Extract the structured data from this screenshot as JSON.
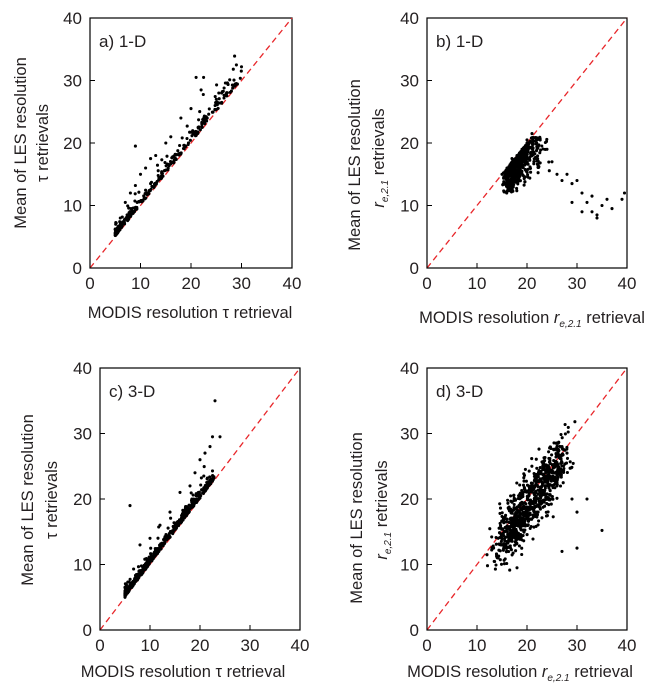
{
  "chart_data": [
    {
      "type": "scatter",
      "panel_label": "a) 1-D",
      "xlabel": "MODIS resolution τ retrieval",
      "ylabel": [
        "Mean of LES resolution",
        "τ retrievals"
      ],
      "xlim": [
        0,
        40
      ],
      "ylim": [
        0,
        40
      ],
      "xticks": [
        "0",
        "10",
        "20",
        "30",
        "40"
      ],
      "yticks": [
        "0",
        "10",
        "20",
        "30",
        "40"
      ],
      "reference_line": "1:1 dashed red",
      "cluster": {
        "x_range": [
          5,
          30
        ],
        "mode": "above_diagonal",
        "spread": 0.55,
        "count": 330
      },
      "points": [
        [
          5,
          5.2
        ],
        [
          6,
          8
        ],
        [
          7,
          10.5
        ],
        [
          8,
          12
        ],
        [
          9,
          13.2
        ],
        [
          10,
          15
        ],
        [
          11,
          16
        ],
        [
          12,
          17.5
        ],
        [
          13,
          18
        ],
        [
          15,
          20
        ],
        [
          16,
          21
        ],
        [
          18,
          24
        ],
        [
          20,
          25.5
        ],
        [
          21,
          30.5
        ],
        [
          22,
          28.5
        ],
        [
          22.5,
          30.5
        ],
        [
          25,
          27
        ],
        [
          25.5,
          28
        ],
        [
          29,
          32.5
        ],
        [
          30,
          32.2
        ],
        [
          9,
          19.5
        ],
        [
          12,
          13.5
        ],
        [
          14,
          14.5
        ]
      ]
    },
    {
      "type": "scatter",
      "panel_label": "b) 1-D",
      "xlabel": [
        "MODIS resolution ",
        "r",
        "e,2.1",
        " retrieval"
      ],
      "ylabel": [
        "Mean of LES resolution",
        "r",
        "e,2.1",
        " retrievals"
      ],
      "xlim": [
        0,
        40
      ],
      "ylim": [
        0,
        40
      ],
      "xticks": [
        "0",
        "10",
        "20",
        "30",
        "40"
      ],
      "yticks": [
        "0",
        "10",
        "20",
        "30",
        "40"
      ],
      "reference_line": "1:1 dashed red",
      "cluster": {
        "x_range": [
          15,
          27
        ],
        "y_center": 17,
        "count": 520
      },
      "points": [
        [
          15,
          15
        ],
        [
          16,
          16
        ],
        [
          17,
          17.5
        ],
        [
          18,
          18
        ],
        [
          19,
          19
        ],
        [
          20,
          20.5
        ],
        [
          21,
          21.5
        ],
        [
          22,
          20.5
        ],
        [
          24,
          19
        ],
        [
          25,
          17
        ],
        [
          26,
          15
        ],
        [
          27,
          14
        ],
        [
          28,
          15
        ],
        [
          29,
          13.5
        ],
        [
          30,
          14
        ],
        [
          31,
          12
        ],
        [
          32,
          10.5
        ],
        [
          33,
          9
        ],
        [
          34,
          8.5
        ],
        [
          35,
          10
        ],
        [
          36,
          11
        ],
        [
          37,
          9.5
        ],
        [
          39,
          11
        ],
        [
          39.5,
          12
        ],
        [
          34,
          8
        ],
        [
          31,
          9
        ],
        [
          29,
          10.5
        ],
        [
          33,
          11.5
        ]
      ]
    },
    {
      "type": "scatter",
      "panel_label": "c) 3-D",
      "xlabel": "MODIS resolution τ retrieval",
      "ylabel": [
        "Mean of LES resolution",
        "τ retrievals"
      ],
      "xlim": [
        0,
        40
      ],
      "ylim": [
        0,
        40
      ],
      "xticks": [
        "0",
        "10",
        "20",
        "30",
        "40"
      ],
      "yticks": [
        "0",
        "10",
        "20",
        "30",
        "40"
      ],
      "reference_line": "1:1 dashed red",
      "cluster": {
        "x_range": [
          5,
          23
        ],
        "mode": "above_diagonal",
        "spread": 0.45,
        "count": 620
      },
      "points": [
        [
          5,
          5
        ],
        [
          6,
          19
        ],
        [
          8,
          13
        ],
        [
          10,
          14
        ],
        [
          12,
          16
        ],
        [
          14,
          18
        ],
        [
          16,
          21
        ],
        [
          18,
          22
        ],
        [
          19,
          24
        ],
        [
          20,
          26
        ],
        [
          21,
          27
        ],
        [
          22,
          28
        ],
        [
          22.5,
          29.5
        ],
        [
          23,
          35
        ],
        [
          24,
          29.5
        ]
      ]
    },
    {
      "type": "scatter",
      "panel_label": "d) 3-D",
      "xlabel": [
        "MODIS resolution ",
        "r",
        "e,2.1",
        " retrieval"
      ],
      "ylabel": [
        "Mean of LES resolution",
        "r",
        "e,2.1",
        " retrievals"
      ],
      "xlim": [
        0,
        40
      ],
      "ylim": [
        0,
        40
      ],
      "xticks": [
        "0",
        "10",
        "20",
        "30",
        "40"
      ],
      "yticks": [
        "0",
        "10",
        "20",
        "30",
        "40"
      ],
      "reference_line": "1:1 dashed red",
      "cluster": {
        "x_range": [
          12,
          30
        ],
        "y_center_offset": -1,
        "count": 820
      },
      "points": [
        [
          12,
          11.5
        ],
        [
          13,
          12.5
        ],
        [
          15,
          14
        ],
        [
          17,
          15
        ],
        [
          18,
          9.5
        ],
        [
          20,
          17
        ],
        [
          22,
          18
        ],
        [
          24,
          25
        ],
        [
          25,
          24
        ],
        [
          26,
          22
        ],
        [
          27,
          28
        ],
        [
          28,
          27
        ],
        [
          29,
          20
        ],
        [
          30,
          18
        ],
        [
          32,
          20
        ],
        [
          35,
          15.2
        ],
        [
          27,
          12
        ],
        [
          30,
          12.5
        ]
      ]
    }
  ]
}
